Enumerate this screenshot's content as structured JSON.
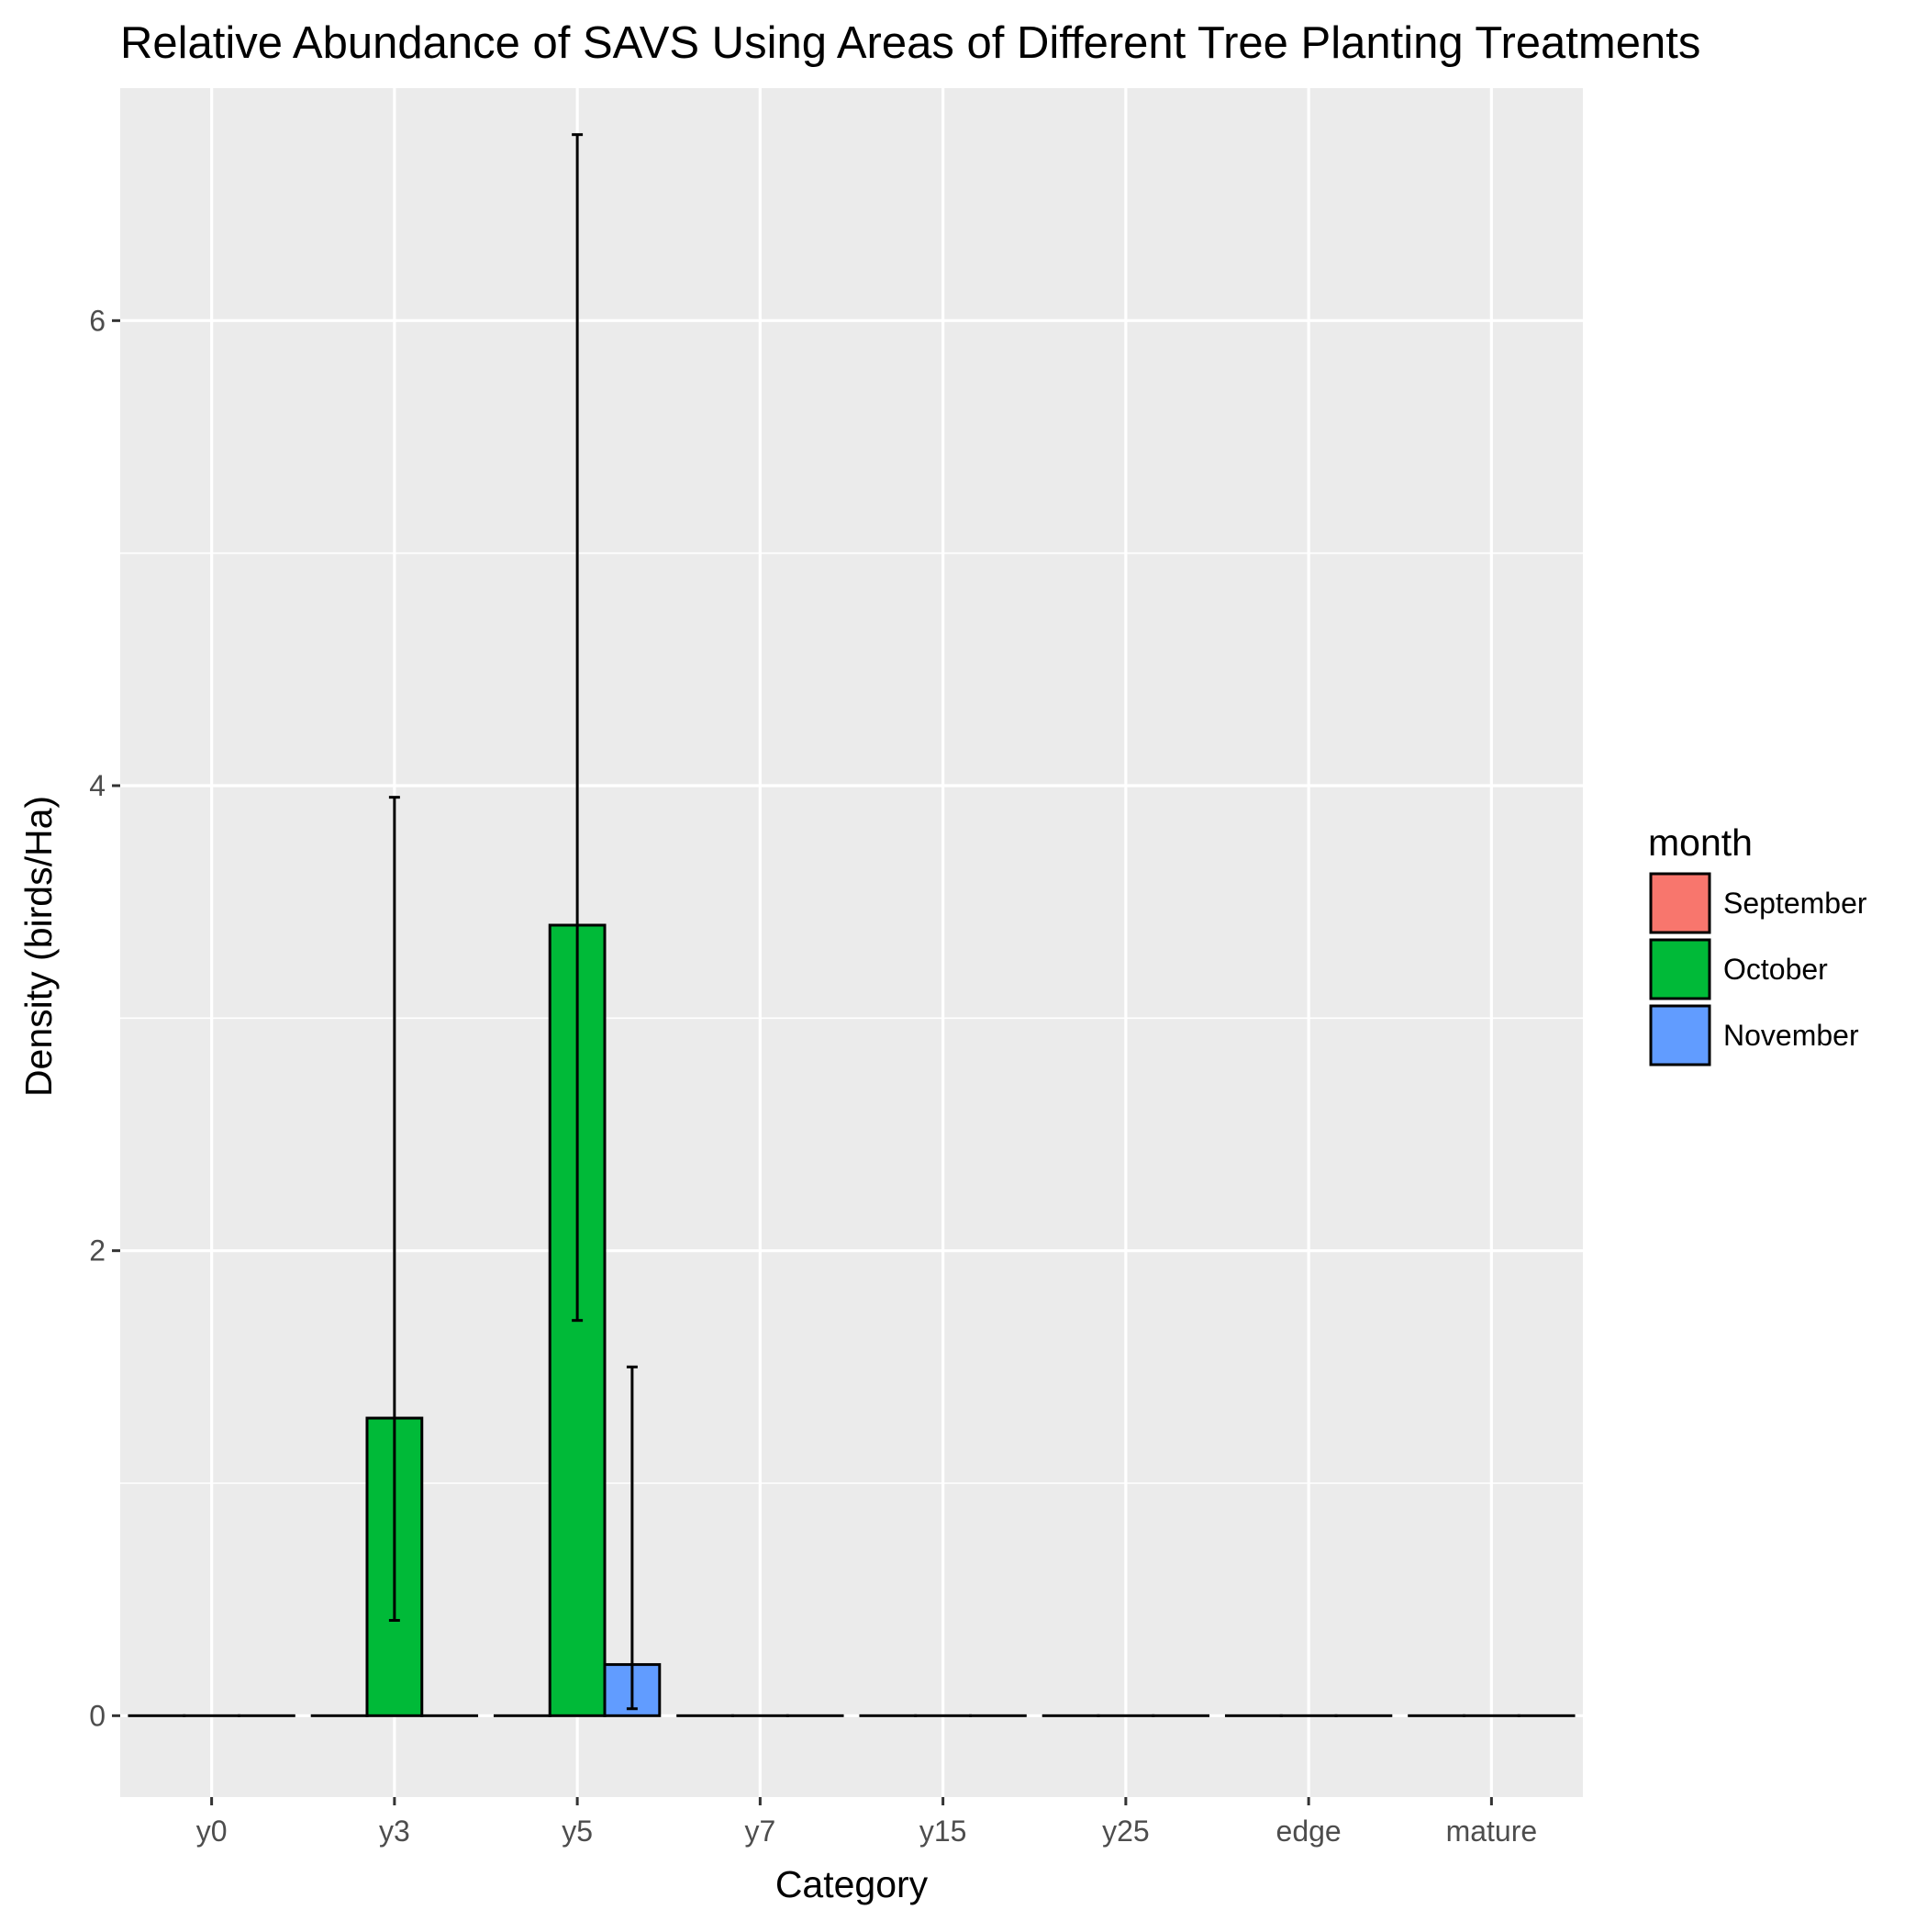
{
  "chart_data": {
    "type": "bar",
    "title": "Relative Abundance of  SAVS  Using Areas of Different Tree Planting Treatments",
    "xlabel": "Category",
    "ylabel": "Density (birds/Ha)",
    "categories": [
      "y0",
      "y3",
      "y5",
      "y7",
      "y15",
      "y25",
      "edge",
      "mature"
    ],
    "ylim": [
      -0.35,
      7.0
    ],
    "yticks": [
      0,
      2,
      4,
      6
    ],
    "grid": true,
    "legend": {
      "title": "month",
      "position": "right"
    },
    "series": [
      {
        "name": "September",
        "color": "#F8766D",
        "values": [
          0,
          0,
          0,
          0,
          0,
          0,
          0,
          0
        ],
        "error_low": [
          null,
          null,
          null,
          null,
          null,
          null,
          null,
          null
        ],
        "error_high": [
          null,
          null,
          null,
          null,
          null,
          null,
          null,
          null
        ]
      },
      {
        "name": "October",
        "color": "#00BA38",
        "values": [
          0,
          1.28,
          3.4,
          0,
          0,
          0,
          0,
          0
        ],
        "error_low": [
          null,
          0.41,
          1.7,
          null,
          null,
          null,
          null,
          null
        ],
        "error_high": [
          null,
          3.95,
          6.8,
          null,
          null,
          null,
          null,
          null
        ]
      },
      {
        "name": "November",
        "color": "#619CFF",
        "values": [
          0,
          0,
          0.22,
          0,
          0,
          0,
          0,
          0
        ],
        "error_low": [
          null,
          null,
          0.03,
          null,
          null,
          null,
          null,
          null
        ],
        "error_high": [
          null,
          null,
          1.5,
          null,
          null,
          null,
          null,
          null
        ]
      }
    ]
  }
}
